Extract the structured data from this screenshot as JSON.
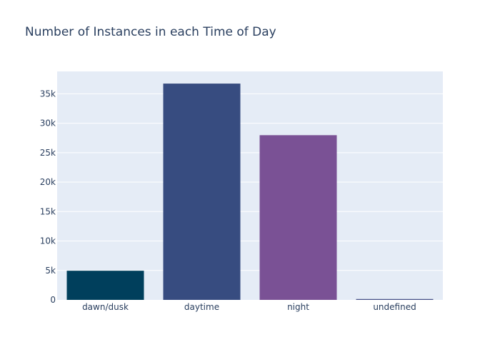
{
  "chart_data": {
    "type": "bar",
    "title": "Number of Instances in each Time of Day",
    "xlabel": "",
    "ylabel": "",
    "categories": [
      "dawn/dusk",
      "daytime",
      "night",
      "undefined"
    ],
    "values": [
      4950,
      36730,
      27970,
      150
    ],
    "colors": [
      "#003f5c",
      "#374c80",
      "#7a5195",
      "#444e86"
    ],
    "ylim": [
      0,
      38800
    ],
    "yticks": [
      0,
      5000,
      10000,
      15000,
      20000,
      25000,
      30000,
      35000
    ],
    "ytick_labels": [
      "0",
      "5k",
      "10k",
      "15k",
      "20k",
      "25k",
      "30k",
      "35k"
    ],
    "grid": true,
    "legend": "none",
    "plot_bg": "#e5ecf6",
    "gridline_color": "#ffffff",
    "text_color": "#2a3f5f"
  }
}
